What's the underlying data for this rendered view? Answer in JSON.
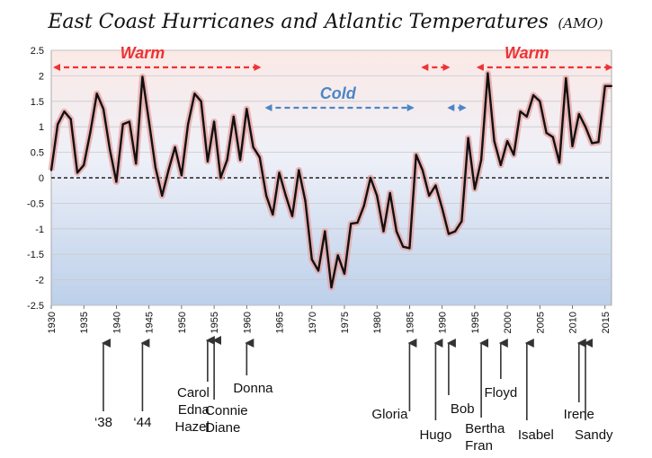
{
  "chart_data": {
    "type": "line",
    "title": "East Coast Hurricanes and Atlantic Temperatures",
    "title_suffix": "(AMO)",
    "xlim": [
      1930,
      2016
    ],
    "ylim": [
      -2.5,
      2.5
    ],
    "y_ticks": [
      "2.5",
      "2",
      "1.5",
      "1",
      "0.5",
      "0",
      "-0.5",
      "-1",
      "-1.5",
      "-2",
      "-2.5"
    ],
    "y_tick_values": [
      2.5,
      2,
      1.5,
      1,
      0.5,
      0,
      -0.5,
      -1,
      -1.5,
      -2,
      -2.5
    ],
    "x_ticks": [
      "1930",
      "1935",
      "1940",
      "1945",
      "1950",
      "1955",
      "1960",
      "1965",
      "1970",
      "1975",
      "1980",
      "1985",
      "1990",
      "1995",
      "2000",
      "2005",
      "2010",
      "2015"
    ],
    "x_tick_values": [
      1930,
      1935,
      1940,
      1945,
      1950,
      1955,
      1960,
      1965,
      1970,
      1975,
      1980,
      1985,
      1990,
      1995,
      2000,
      2005,
      2010,
      2015
    ],
    "grid": true,
    "zero_line": true,
    "background": "warm phases shaded red at top, cool blue toward bottom",
    "series": [
      {
        "line_color": "#111111",
        "glow_color": "#e8a0a0",
        "x": [
          1930,
          1931,
          1932,
          1933,
          1934,
          1935,
          1936,
          1937,
          1938,
          1939,
          1940,
          1941,
          1942,
          1943,
          1944,
          1945,
          1946,
          1947,
          1948,
          1949,
          1950,
          1951,
          1952,
          1953,
          1954,
          1955,
          1956,
          1957,
          1958,
          1959,
          1960,
          1961,
          1962,
          1963,
          1964,
          1965,
          1966,
          1967,
          1968,
          1969,
          1970,
          1971,
          1972,
          1973,
          1974,
          1975,
          1976,
          1977,
          1978,
          1979,
          1980,
          1981,
          1982,
          1983,
          1984,
          1985,
          1986,
          1987,
          1988,
          1989,
          1990,
          1991,
          1992,
          1993,
          1994,
          1995,
          1996,
          1997,
          1998,
          1999,
          2000,
          2001,
          2002,
          2003,
          2004,
          2005,
          2006,
          2007,
          2008,
          2009,
          2010,
          2011,
          2012,
          2013,
          2014,
          2015,
          2016
        ],
        "values": [
          0.15,
          1.05,
          1.3,
          1.15,
          0.1,
          0.25,
          0.9,
          1.65,
          1.35,
          0.55,
          -0.08,
          1.05,
          1.1,
          0.28,
          1.98,
          1.1,
          0.2,
          -0.35,
          0.15,
          0.6,
          0.05,
          1.05,
          1.65,
          1.5,
          0.32,
          1.1,
          0.0,
          0.35,
          1.2,
          0.35,
          1.35,
          0.6,
          0.4,
          -0.35,
          -0.72,
          0.1,
          -0.35,
          -0.75,
          0.15,
          -0.45,
          -1.6,
          -1.82,
          -1.05,
          -2.15,
          -1.52,
          -1.88,
          -0.9,
          -0.88,
          -0.55,
          0.0,
          -0.35,
          -1.05,
          -0.3,
          -1.05,
          -1.35,
          -1.38,
          0.45,
          0.15,
          -0.35,
          -0.15,
          -0.6,
          -1.1,
          -1.05,
          -0.85,
          0.78,
          -0.22,
          0.35,
          2.05,
          0.72,
          0.25,
          0.72,
          0.45,
          1.3,
          1.2,
          1.62,
          1.5,
          0.88,
          0.8,
          0.3,
          1.95,
          0.62,
          1.25,
          1.0,
          0.68,
          0.7,
          1.8,
          1.8
        ]
      }
    ],
    "phases": [
      {
        "label": "Warm",
        "type": "warm",
        "x_start": 1930,
        "x_end": 1962.5,
        "label_x": 1944
      },
      {
        "label": "",
        "type": "warm",
        "x_start": 1986.5,
        "x_end": 1991.5,
        "label_x": null
      },
      {
        "label": "Warm",
        "type": "warm",
        "x_start": 1995,
        "x_end": 2016.5,
        "label_x": 2003
      },
      {
        "label": "Cold",
        "type": "cold",
        "x_start": 1962.5,
        "x_end": 1986,
        "label_x": 1974
      },
      {
        "label": "",
        "type": "cold",
        "x_start": 1990.5,
        "x_end": 1994,
        "label_x": null
      }
    ],
    "hurricanes": [
      {
        "year": 1938,
        "lines": [
          "‘38"
        ],
        "label_row": "low"
      },
      {
        "year": 1944,
        "lines": [
          "‘44"
        ],
        "label_row": "low"
      },
      {
        "year": 1954,
        "lines": [
          "Carol",
          "Edna",
          "Hazel"
        ],
        "label_row": "mid"
      },
      {
        "year": 1955,
        "lines": [
          "Connie",
          "Diane"
        ],
        "label_row": "mid2"
      },
      {
        "year": 1960,
        "lines": [
          "Donna"
        ],
        "label_row": "high"
      },
      {
        "year": 1985,
        "lines": [
          "Gloria"
        ],
        "label_row": "gloria"
      },
      {
        "year": 1989,
        "lines": [
          "Hugo"
        ],
        "label_row": "hugo"
      },
      {
        "year": 1991,
        "lines": [
          "Bob"
        ],
        "label_row": "bob"
      },
      {
        "year": 1996,
        "lines": [
          "Bertha",
          "Fran"
        ],
        "label_row": "bertha"
      },
      {
        "year": 1999,
        "lines": [
          "Floyd"
        ],
        "label_row": "floyd"
      },
      {
        "year": 2003,
        "lines": [
          "Isabel"
        ],
        "label_row": "isabel"
      },
      {
        "year": 2011,
        "lines": [
          "Irene"
        ],
        "label_row": "irene"
      },
      {
        "year": 2012,
        "lines": [
          "Sandy"
        ],
        "label_row": "sandy"
      }
    ],
    "colors": {
      "warm": "#ee3333",
      "cold": "#4d86c6",
      "plot_top": "#fbe9e6",
      "plot_mid": "#eef0f8",
      "plot_bottom": "#bcd0ea",
      "grid": "#c9c9c9",
      "zero_line": "#222222"
    }
  }
}
